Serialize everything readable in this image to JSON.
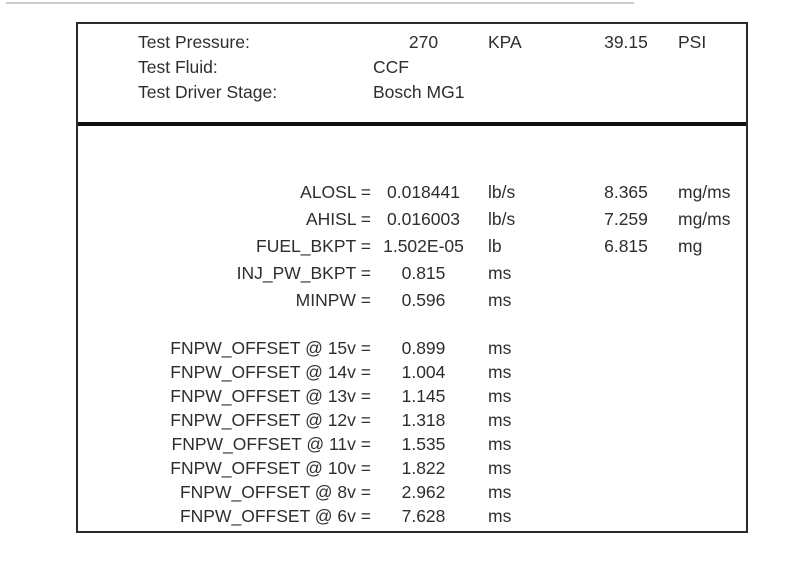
{
  "test_conditions": {
    "rows": [
      {
        "label": "Test Pressure:",
        "value": "270",
        "unit": "KPA",
        "value2": "39.15",
        "unit2": "PSI"
      },
      {
        "label": "Test Fluid:",
        "value": "CCF",
        "unit": "",
        "value2": "",
        "unit2": ""
      },
      {
        "label": "Test Driver Stage:",
        "value": "Bosch MG1",
        "unit": "",
        "value2": "",
        "unit2": ""
      }
    ]
  },
  "parameters": [
    {
      "label": "ALOSL =",
      "value": "0.018441",
      "unit": "lb/s",
      "value2": "8.365",
      "unit2": "mg/ms"
    },
    {
      "label": "AHISL =",
      "value": "0.016003",
      "unit": "lb/s",
      "value2": "7.259",
      "unit2": "mg/ms"
    },
    {
      "label": "FUEL_BKPT =",
      "value": "1.502E-05",
      "unit": "lb",
      "value2": "6.815",
      "unit2": "mg"
    },
    {
      "label": "INJ_PW_BKPT =",
      "value": "0.815",
      "unit": "ms",
      "value2": "",
      "unit2": ""
    },
    {
      "label": "MINPW =",
      "value": "0.596",
      "unit": "ms",
      "value2": "",
      "unit2": ""
    }
  ],
  "offsets": [
    {
      "label": "FNPW_OFFSET @ 15v =",
      "value": "0.899",
      "unit": "ms"
    },
    {
      "label": "FNPW_OFFSET @ 14v =",
      "value": "1.004",
      "unit": "ms"
    },
    {
      "label": "FNPW_OFFSET @ 13v =",
      "value": "1.145",
      "unit": "ms"
    },
    {
      "label": "FNPW_OFFSET @ 12v =",
      "value": "1.318",
      "unit": "ms"
    },
    {
      "label": "FNPW_OFFSET @ 11v =",
      "value": "1.535",
      "unit": "ms"
    },
    {
      "label": "FNPW_OFFSET @ 10v =",
      "value": "1.822",
      "unit": "ms"
    },
    {
      "label": "FNPW_OFFSET @ 8v =",
      "value": "2.962",
      "unit": "ms"
    },
    {
      "label": "FNPW_OFFSET @ 6v =",
      "value": "7.628",
      "unit": "ms"
    }
  ]
}
